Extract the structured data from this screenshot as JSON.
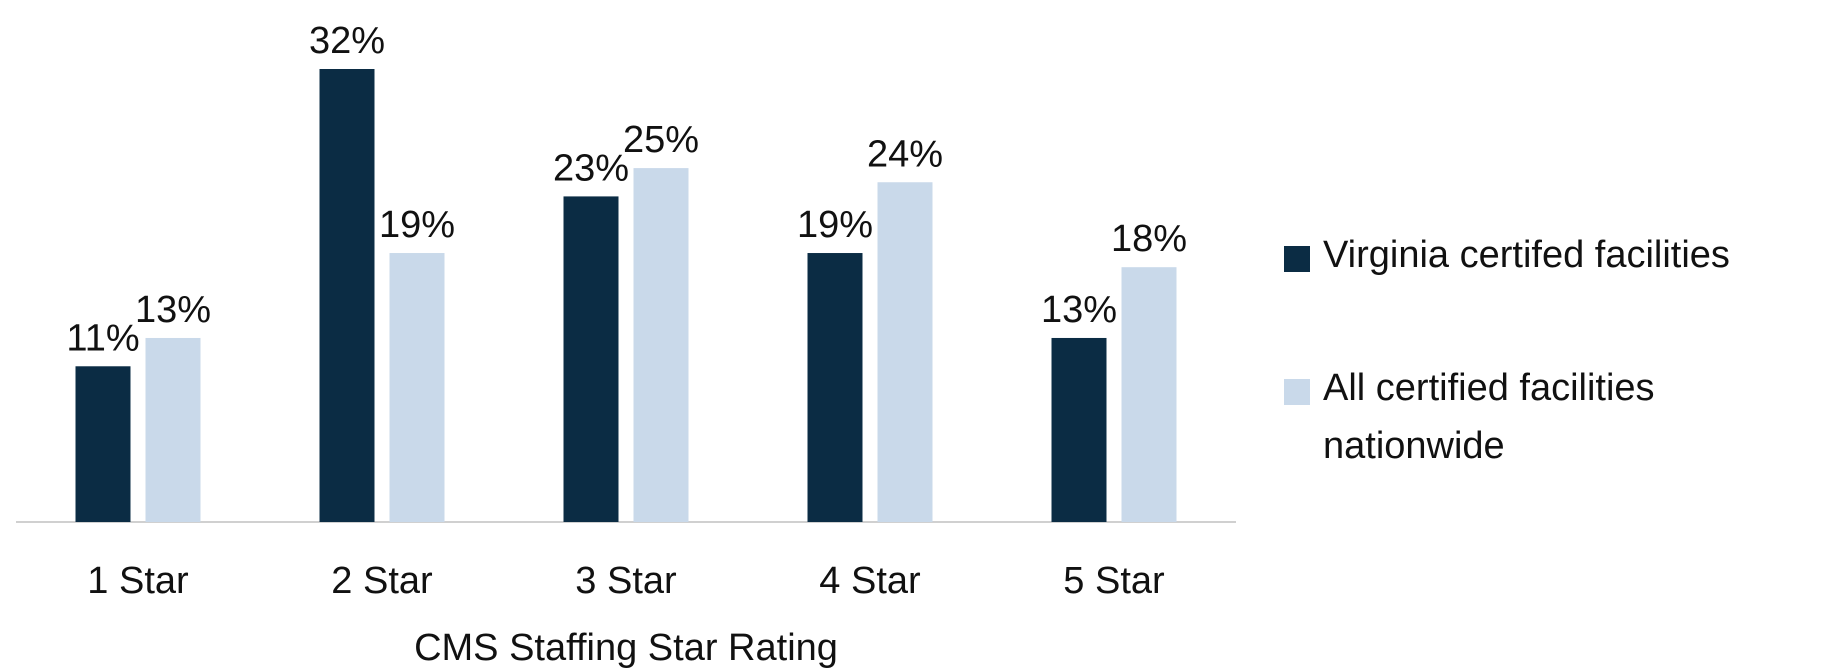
{
  "chart_data": {
    "type": "bar",
    "x_label": "CMS Staffing Star Rating",
    "categories": [
      "1 Star",
      "2 Star",
      "3 Star",
      "4 Star",
      "5 Star"
    ],
    "series": [
      {
        "name": "Virginia certifed facilities",
        "color": "#0b2c44",
        "values": [
          11,
          32,
          23,
          19,
          13
        ],
        "value_labels": [
          "11%",
          "32%",
          "23%",
          "19%",
          "13%"
        ]
      },
      {
        "name": "All certified facilities nationwide",
        "color": "#c9d9ea",
        "values": [
          13,
          19,
          25,
          24,
          18
        ],
        "value_labels": [
          "13%",
          "19%",
          "25%",
          "24%",
          "18%"
        ]
      }
    ],
    "legend": "right"
  }
}
